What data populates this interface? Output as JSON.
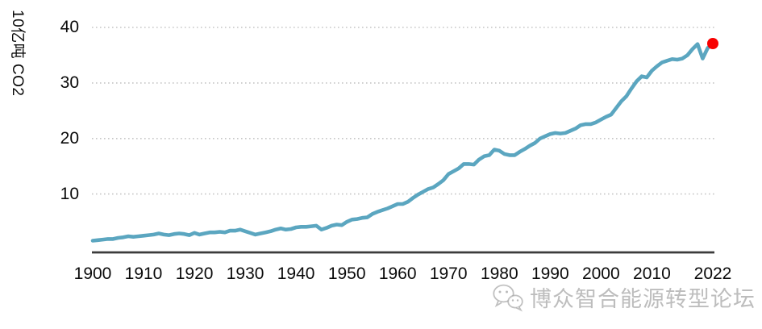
{
  "chart_data": {
    "type": "line",
    "title": "",
    "xlabel": "",
    "ylabel": "10亿吨 CO2",
    "x": [
      1900,
      1901,
      1902,
      1903,
      1904,
      1905,
      1906,
      1907,
      1908,
      1909,
      1910,
      1911,
      1912,
      1913,
      1914,
      1915,
      1916,
      1917,
      1918,
      1919,
      1920,
      1921,
      1922,
      1923,
      1924,
      1925,
      1926,
      1927,
      1928,
      1929,
      1930,
      1931,
      1932,
      1933,
      1934,
      1935,
      1936,
      1937,
      1938,
      1939,
      1940,
      1941,
      1942,
      1943,
      1944,
      1945,
      1946,
      1947,
      1948,
      1949,
      1950,
      1951,
      1952,
      1953,
      1954,
      1955,
      1956,
      1957,
      1958,
      1959,
      1960,
      1961,
      1962,
      1963,
      1964,
      1965,
      1966,
      1967,
      1968,
      1969,
      1970,
      1971,
      1972,
      1973,
      1974,
      1975,
      1976,
      1977,
      1978,
      1979,
      1980,
      1981,
      1982,
      1983,
      1984,
      1985,
      1986,
      1987,
      1988,
      1989,
      1990,
      1991,
      1992,
      1993,
      1994,
      1995,
      1996,
      1997,
      1998,
      1999,
      2000,
      2001,
      2002,
      2003,
      2004,
      2005,
      2006,
      2007,
      2008,
      2009,
      2010,
      2011,
      2012,
      2013,
      2014,
      2015,
      2016,
      2017,
      2018,
      2019,
      2020,
      2021,
      2022
    ],
    "values": [
      1.6,
      1.7,
      1.8,
      1.9,
      1.9,
      2.1,
      2.2,
      2.4,
      2.3,
      2.4,
      2.5,
      2.6,
      2.7,
      2.9,
      2.7,
      2.6,
      2.8,
      2.9,
      2.8,
      2.6,
      3.0,
      2.7,
      2.9,
      3.1,
      3.1,
      3.2,
      3.1,
      3.4,
      3.4,
      3.6,
      3.3,
      3.0,
      2.7,
      2.9,
      3.1,
      3.3,
      3.6,
      3.8,
      3.6,
      3.7,
      4.0,
      4.1,
      4.1,
      4.2,
      4.3,
      3.6,
      3.9,
      4.3,
      4.5,
      4.4,
      5.0,
      5.4,
      5.5,
      5.7,
      5.8,
      6.4,
      6.8,
      7.1,
      7.4,
      7.8,
      8.2,
      8.2,
      8.6,
      9.3,
      9.9,
      10.4,
      10.9,
      11.2,
      11.8,
      12.5,
      13.6,
      14.1,
      14.6,
      15.4,
      15.4,
      15.3,
      16.2,
      16.8,
      17.0,
      18.0,
      17.8,
      17.2,
      17.0,
      17.0,
      17.6,
      18.1,
      18.7,
      19.2,
      20.0,
      20.4,
      20.8,
      21.0,
      20.9,
      21.0,
      21.4,
      21.8,
      22.4,
      22.6,
      22.6,
      22.9,
      23.4,
      23.9,
      24.3,
      25.5,
      26.7,
      27.6,
      29.0,
      30.3,
      31.2,
      31.0,
      32.2,
      33.0,
      33.7,
      34.0,
      34.3,
      34.2,
      34.4,
      35.0,
      36.1,
      37.0,
      34.4,
      36.3,
      37.1
    ],
    "x_tick_labels": [
      "1900",
      "1910",
      "1920",
      "1930",
      "1940",
      "1950",
      "1960",
      "1970",
      "1980",
      "1990",
      "2000",
      "2010",
      "2022"
    ],
    "y_ticks": [
      10,
      20,
      30,
      40
    ],
    "xlim": [
      1900,
      2022
    ],
    "ylim": [
      0,
      42
    ],
    "grid": "horizontal dotted",
    "legend": "none",
    "line_color": "#5BA6C0",
    "end_marker": {
      "x": 2022,
      "value": 37.1,
      "color": "#F80000"
    }
  },
  "colors": {
    "background": "#FFFFFF",
    "axis_line": "#3C3C3C",
    "gridline": "#C6C6C6",
    "tick_text": "#0A0A0A",
    "watermark_text": "#949494"
  },
  "watermark": {
    "text": "博众智合能源转型论坛",
    "icon": "wechat-logo"
  }
}
